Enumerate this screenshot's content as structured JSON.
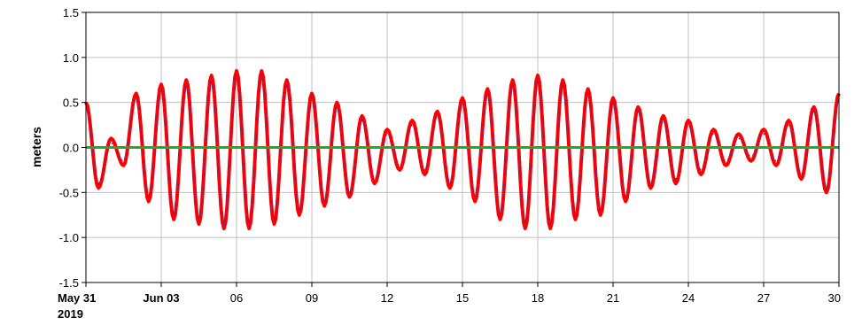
{
  "chart_data": {
    "type": "line",
    "ylabel": "meters",
    "ylim": [
      -1.5,
      1.5
    ],
    "yticks": [
      {
        "value": 1.5,
        "label": "1.5"
      },
      {
        "value": 1.0,
        "label": "1.0"
      },
      {
        "value": 0.5,
        "label": "0.5"
      },
      {
        "value": 0.0,
        "label": "0.0"
      },
      {
        "value": -0.5,
        "label": "-0.5"
      },
      {
        "value": -1.0,
        "label": "-1.0"
      },
      {
        "value": -1.5,
        "label": "-1.5"
      }
    ],
    "xlim": [
      "2019-05-31",
      "2019-06-30"
    ],
    "xticks": [
      {
        "date": "2019-05-31",
        "label": "May 31",
        "sublabel": "2019",
        "bold": true
      },
      {
        "date": "2019-06-03",
        "label": "Jun 03",
        "bold": true
      },
      {
        "date": "2019-06-06",
        "label": "06"
      },
      {
        "date": "2019-06-09",
        "label": "09"
      },
      {
        "date": "2019-06-12",
        "label": "12"
      },
      {
        "date": "2019-06-15",
        "label": "15"
      },
      {
        "date": "2019-06-18",
        "label": "18"
      },
      {
        "date": "2019-06-21",
        "label": "21"
      },
      {
        "date": "2019-06-24",
        "label": "24"
      },
      {
        "date": "2019-06-27",
        "label": "27"
      },
      {
        "date": "2019-06-30",
        "label": "30"
      }
    ],
    "grid": true,
    "series": [
      {
        "color": "#ff0000",
        "style": "thick-line",
        "x": [
          "2019-05-31 00:00",
          "2019-05-31 12:00",
          "2019-06-01 00:00",
          "2019-06-01 12:00",
          "2019-06-02 00:00",
          "2019-06-02 12:00",
          "2019-06-03 00:00",
          "2019-06-03 12:00",
          "2019-06-04 00:00",
          "2019-06-04 12:00",
          "2019-06-05 00:00",
          "2019-06-05 12:00",
          "2019-06-06 00:00",
          "2019-06-06 12:00",
          "2019-06-07 00:00",
          "2019-06-07 12:00",
          "2019-06-08 00:00",
          "2019-06-08 12:00",
          "2019-06-09 00:00",
          "2019-06-09 12:00",
          "2019-06-10 00:00",
          "2019-06-10 12:00",
          "2019-06-11 00:00",
          "2019-06-11 12:00",
          "2019-06-12 00:00",
          "2019-06-12 12:00",
          "2019-06-13 00:00",
          "2019-06-13 12:00",
          "2019-06-14 00:00",
          "2019-06-14 12:00",
          "2019-06-15 00:00",
          "2019-06-15 12:00",
          "2019-06-16 00:00",
          "2019-06-16 12:00",
          "2019-06-17 00:00",
          "2019-06-17 12:00",
          "2019-06-18 00:00",
          "2019-06-18 12:00",
          "2019-06-19 00:00",
          "2019-06-19 12:00",
          "2019-06-20 00:00",
          "2019-06-20 12:00",
          "2019-06-21 00:00",
          "2019-06-21 12:00",
          "2019-06-22 00:00",
          "2019-06-22 12:00",
          "2019-06-23 00:00",
          "2019-06-23 12:00",
          "2019-06-24 00:00",
          "2019-06-24 12:00",
          "2019-06-25 00:00",
          "2019-06-25 12:00",
          "2019-06-26 00:00",
          "2019-06-26 12:00",
          "2019-06-27 00:00",
          "2019-06-27 12:00",
          "2019-06-28 00:00",
          "2019-06-28 12:00",
          "2019-06-29 00:00",
          "2019-06-29 12:00",
          "2019-06-30 00:00"
        ],
        "y": [
          0.5,
          -0.45,
          0.1,
          -0.2,
          0.6,
          -0.6,
          0.7,
          -0.8,
          0.75,
          -0.85,
          0.8,
          -0.9,
          0.85,
          -0.9,
          0.85,
          -0.85,
          0.75,
          -0.75,
          0.6,
          -0.65,
          0.5,
          -0.55,
          0.35,
          -0.4,
          0.2,
          -0.25,
          0.3,
          -0.3,
          0.4,
          -0.45,
          0.55,
          -0.6,
          0.65,
          -0.8,
          0.75,
          -0.9,
          0.8,
          -0.9,
          0.75,
          -0.8,
          0.65,
          -0.75,
          0.55,
          -0.6,
          0.45,
          -0.45,
          0.35,
          -0.4,
          0.3,
          -0.3,
          0.2,
          -0.2,
          0.15,
          -0.15,
          0.2,
          -0.2,
          0.3,
          -0.35,
          0.45,
          -0.5,
          0.6
        ]
      },
      {
        "color": "#3333cc",
        "style": "dotted",
        "x": [
          "2019-05-31 00:00",
          "2019-05-31 12:00",
          "2019-06-01 00:00",
          "2019-06-01 12:00",
          "2019-06-02 00:00",
          "2019-06-02 12:00",
          "2019-06-03 00:00",
          "2019-06-03 12:00",
          "2019-06-04 00:00",
          "2019-06-04 12:00",
          "2019-06-05 00:00",
          "2019-06-05 12:00",
          "2019-06-06 00:00",
          "2019-06-06 12:00",
          "2019-06-07 00:00",
          "2019-06-07 12:00",
          "2019-06-08 00:00",
          "2019-06-08 12:00",
          "2019-06-09 00:00",
          "2019-06-09 12:00",
          "2019-06-10 00:00",
          "2019-06-10 12:00",
          "2019-06-11 00:00",
          "2019-06-11 12:00",
          "2019-06-12 00:00",
          "2019-06-12 12:00",
          "2019-06-13 00:00",
          "2019-06-13 12:00",
          "2019-06-14 00:00",
          "2019-06-14 12:00",
          "2019-06-15 00:00",
          "2019-06-15 12:00",
          "2019-06-16 00:00",
          "2019-06-16 12:00",
          "2019-06-17 00:00",
          "2019-06-17 12:00",
          "2019-06-18 00:00",
          "2019-06-18 12:00",
          "2019-06-19 00:00",
          "2019-06-19 12:00",
          "2019-06-20 00:00",
          "2019-06-20 12:00",
          "2019-06-21 00:00",
          "2019-06-21 12:00",
          "2019-06-22 00:00",
          "2019-06-22 12:00",
          "2019-06-23 00:00",
          "2019-06-23 12:00",
          "2019-06-24 00:00",
          "2019-06-24 12:00",
          "2019-06-25 00:00",
          "2019-06-25 12:00",
          "2019-06-26 00:00",
          "2019-06-26 12:00",
          "2019-06-27 00:00",
          "2019-06-27 12:00",
          "2019-06-28 00:00",
          "2019-06-28 12:00",
          "2019-06-29 00:00",
          "2019-06-29 12:00",
          "2019-06-30 00:00"
        ],
        "y": [
          0.45,
          -0.4,
          0.05,
          -0.15,
          0.55,
          -0.55,
          0.65,
          -0.75,
          0.7,
          -0.8,
          0.75,
          -0.85,
          0.8,
          -0.85,
          0.8,
          -0.8,
          0.7,
          -0.7,
          0.55,
          -0.6,
          0.45,
          -0.5,
          0.3,
          -0.35,
          0.15,
          -0.2,
          0.25,
          -0.25,
          0.35,
          -0.4,
          0.5,
          -0.55,
          0.6,
          -0.75,
          0.7,
          -0.85,
          0.75,
          -0.85,
          0.7,
          -0.75,
          0.6,
          -0.7,
          0.5,
          -0.55,
          0.4,
          -0.4,
          0.3,
          -0.35,
          0.25,
          -0.25,
          0.15,
          -0.15,
          0.1,
          -0.1,
          0.15,
          -0.15,
          0.25,
          -0.3,
          0.4,
          -0.45,
          0.55
        ]
      },
      {
        "color": "#22aa22",
        "style": "line",
        "x": [
          "2019-05-31 00:00",
          "2019-06-30 00:00"
        ],
        "y": [
          0.0,
          0.0
        ]
      }
    ]
  }
}
